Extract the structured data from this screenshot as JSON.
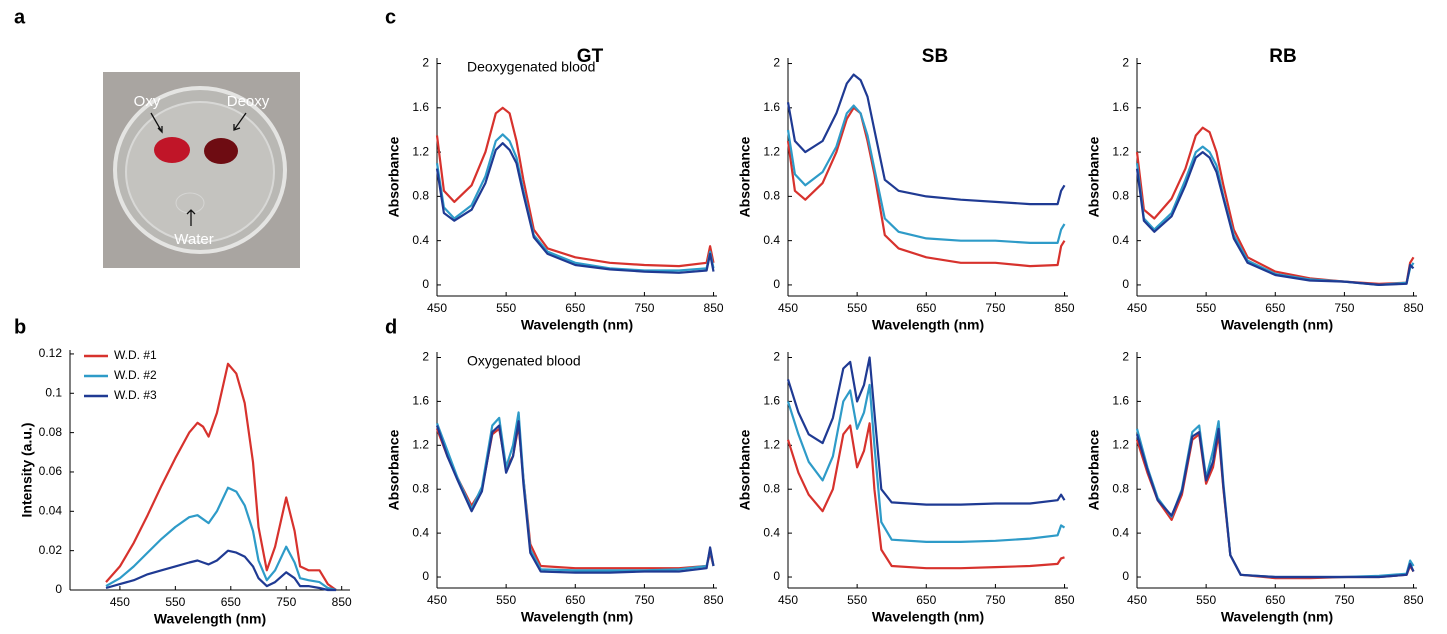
{
  "panel_labels": [
    "a",
    "b",
    "c",
    "d"
  ],
  "column_titles": [
    "GT",
    "SB",
    "RB"
  ],
  "photo": {
    "labels": [
      "Oxy",
      "Deoxy",
      "Water"
    ]
  },
  "chart_data": [
    {
      "type": "line",
      "xlabel": "Wavelength (nm)",
      "ylabel": "Intensity (a.u.)",
      "legend": "upper left",
      "x": [
        425,
        450,
        475,
        500,
        525,
        550,
        575,
        590,
        600,
        610,
        625,
        645,
        660,
        675,
        690,
        700,
        715,
        730,
        750,
        765,
        775,
        790,
        810,
        825,
        840
      ],
      "series": [
        {
          "name": "W.D. #1",
          "color": "#d7322d",
          "values": [
            0.004,
            0.012,
            0.024,
            0.038,
            0.053,
            0.067,
            0.08,
            0.085,
            0.083,
            0.078,
            0.09,
            0.115,
            0.11,
            0.095,
            0.065,
            0.032,
            0.01,
            0.022,
            0.047,
            0.03,
            0.012,
            0.01,
            0.01,
            0.003,
            0
          ]
        },
        {
          "name": "W.D. #2",
          "color": "#2e9bc8",
          "values": [
            0.002,
            0.006,
            0.012,
            0.019,
            0.026,
            0.032,
            0.037,
            0.038,
            0.036,
            0.034,
            0.04,
            0.052,
            0.05,
            0.043,
            0.03,
            0.015,
            0.005,
            0.01,
            0.022,
            0.014,
            0.006,
            0.005,
            0.004,
            0.001,
            0
          ]
        },
        {
          "name": "W.D. #3",
          "color": "#1f3a93",
          "values": [
            0.001,
            0.003,
            0.005,
            0.008,
            0.01,
            0.012,
            0.014,
            0.015,
            0.014,
            0.013,
            0.015,
            0.02,
            0.019,
            0.017,
            0.012,
            0.006,
            0.002,
            0.004,
            0.009,
            0.006,
            0.002,
            0.002,
            0.001,
            0,
            0
          ]
        }
      ],
      "xlim": [
        360,
        865
      ],
      "ylim": [
        0,
        0.122
      ],
      "xticks": [
        450,
        550,
        650,
        750,
        850
      ],
      "yticks": [
        0,
        0.02,
        0.04,
        0.06,
        0.08,
        0.1,
        0.12
      ]
    },
    {
      "type": "line",
      "xlabel": "Wavelength (nm)",
      "ylabel": "Absorbance",
      "annotation": "Deoxygenated blood",
      "x": [
        450,
        460,
        475,
        500,
        520,
        535,
        545,
        555,
        565,
        575,
        590,
        610,
        650,
        700,
        750,
        800,
        840,
        845,
        850
      ],
      "series": [
        {
          "color": "#d7322d",
          "values": [
            1.35,
            0.85,
            0.75,
            0.9,
            1.2,
            1.55,
            1.6,
            1.55,
            1.3,
            0.95,
            0.5,
            0.33,
            0.25,
            0.2,
            0.18,
            0.17,
            0.2,
            0.35,
            0.2
          ]
        },
        {
          "color": "#2e9bc8",
          "values": [
            1.1,
            0.7,
            0.6,
            0.72,
            0.98,
            1.3,
            1.36,
            1.3,
            1.15,
            0.85,
            0.45,
            0.3,
            0.2,
            0.15,
            0.13,
            0.13,
            0.15,
            0.3,
            0.15
          ]
        },
        {
          "color": "#1f3a93",
          "values": [
            1.05,
            0.65,
            0.58,
            0.68,
            0.92,
            1.22,
            1.28,
            1.22,
            1.1,
            0.82,
            0.43,
            0.28,
            0.18,
            0.14,
            0.12,
            0.11,
            0.13,
            0.28,
            0.12
          ]
        }
      ],
      "xlim": [
        450,
        855
      ],
      "ylim": [
        -0.1,
        2.05
      ],
      "xticks": [
        450,
        550,
        650,
        750,
        850
      ],
      "yticks": [
        0,
        0.4,
        0.8,
        1.2,
        1.6,
        2
      ]
    },
    {
      "type": "line",
      "xlabel": "Wavelength (nm)",
      "ylabel": "Absorbance",
      "x": [
        450,
        460,
        475,
        500,
        520,
        535,
        545,
        555,
        565,
        575,
        590,
        610,
        650,
        700,
        750,
        800,
        840,
        845,
        850
      ],
      "series": [
        {
          "color": "#d7322d",
          "values": [
            1.3,
            0.85,
            0.77,
            0.92,
            1.2,
            1.5,
            1.6,
            1.55,
            1.3,
            1.0,
            0.45,
            0.33,
            0.25,
            0.2,
            0.2,
            0.17,
            0.18,
            0.35,
            0.4
          ]
        },
        {
          "color": "#2e9bc8",
          "values": [
            1.4,
            1.0,
            0.9,
            1.02,
            1.25,
            1.55,
            1.62,
            1.55,
            1.35,
            1.05,
            0.6,
            0.48,
            0.42,
            0.4,
            0.4,
            0.38,
            0.38,
            0.5,
            0.55
          ]
        },
        {
          "color": "#1f3a93",
          "values": [
            1.65,
            1.3,
            1.2,
            1.3,
            1.55,
            1.82,
            1.9,
            1.85,
            1.7,
            1.4,
            0.95,
            0.85,
            0.8,
            0.77,
            0.75,
            0.73,
            0.73,
            0.85,
            0.9
          ]
        }
      ],
      "xlim": [
        450,
        855
      ],
      "ylim": [
        -0.1,
        2.05
      ],
      "xticks": [
        450,
        550,
        650,
        750,
        850
      ],
      "yticks": [
        0,
        0.4,
        0.8,
        1.2,
        1.6,
        2
      ]
    },
    {
      "type": "line",
      "xlabel": "Wavelength (nm)",
      "ylabel": "Absorbance",
      "x": [
        450,
        460,
        475,
        500,
        520,
        535,
        545,
        555,
        565,
        575,
        590,
        610,
        650,
        700,
        750,
        800,
        840,
        845,
        850
      ],
      "series": [
        {
          "color": "#d7322d",
          "values": [
            1.2,
            0.68,
            0.6,
            0.78,
            1.05,
            1.35,
            1.42,
            1.38,
            1.2,
            0.9,
            0.5,
            0.25,
            0.12,
            0.06,
            0.03,
            0.01,
            0.02,
            0.2,
            0.25
          ]
        },
        {
          "color": "#2e9bc8",
          "values": [
            1.1,
            0.6,
            0.5,
            0.65,
            0.95,
            1.2,
            1.25,
            1.2,
            1.08,
            0.8,
            0.45,
            0.22,
            0.1,
            0.05,
            0.03,
            0.0,
            0.02,
            0.15,
            0.2
          ]
        },
        {
          "color": "#1f3a93",
          "values": [
            1.05,
            0.58,
            0.48,
            0.62,
            0.9,
            1.15,
            1.2,
            1.15,
            1.02,
            0.78,
            0.42,
            0.2,
            0.09,
            0.04,
            0.03,
            0.0,
            0.01,
            0.18,
            0.15
          ]
        }
      ],
      "xlim": [
        450,
        855
      ],
      "ylim": [
        -0.1,
        2.05
      ],
      "xticks": [
        450,
        550,
        650,
        750,
        850
      ],
      "yticks": [
        0,
        0.4,
        0.8,
        1.2,
        1.6,
        2
      ]
    },
    {
      "type": "line",
      "xlabel": "Wavelength (nm)",
      "ylabel": "Absorbance",
      "annotation": "Oxygenated blood",
      "x": [
        450,
        465,
        480,
        500,
        515,
        530,
        540,
        550,
        560,
        568,
        575,
        585,
        600,
        650,
        700,
        750,
        800,
        840,
        845,
        850
      ],
      "series": [
        {
          "color": "#d7322d",
          "values": [
            1.35,
            1.1,
            0.9,
            0.65,
            0.8,
            1.3,
            1.35,
            1.0,
            1.1,
            1.38,
            0.9,
            0.3,
            0.1,
            0.08,
            0.08,
            0.08,
            0.08,
            0.1,
            0.22,
            0.1
          ]
        },
        {
          "color": "#2e9bc8",
          "values": [
            1.4,
            1.15,
            0.9,
            0.62,
            0.82,
            1.38,
            1.45,
            1.0,
            1.2,
            1.5,
            0.9,
            0.25,
            0.07,
            0.06,
            0.06,
            0.06,
            0.07,
            0.1,
            0.25,
            0.1
          ]
        },
        {
          "color": "#1f3a93",
          "values": [
            1.38,
            1.1,
            0.88,
            0.6,
            0.78,
            1.32,
            1.38,
            0.95,
            1.1,
            1.42,
            0.85,
            0.22,
            0.05,
            0.04,
            0.04,
            0.05,
            0.05,
            0.08,
            0.27,
            0.1
          ]
        }
      ],
      "xlim": [
        450,
        855
      ],
      "ylim": [
        -0.1,
        2.05
      ],
      "xticks": [
        450,
        550,
        650,
        750,
        850
      ],
      "yticks": [
        0,
        0.4,
        0.8,
        1.2,
        1.6,
        2
      ]
    },
    {
      "type": "line",
      "xlabel": "Wavelength (nm)",
      "ylabel": "Absorbance",
      "x": [
        450,
        465,
        480,
        500,
        515,
        530,
        540,
        550,
        560,
        568,
        575,
        585,
        600,
        650,
        700,
        750,
        800,
        840,
        845,
        850
      ],
      "series": [
        {
          "color": "#d7322d",
          "values": [
            1.25,
            0.95,
            0.75,
            0.6,
            0.8,
            1.3,
            1.38,
            1.0,
            1.15,
            1.4,
            0.8,
            0.25,
            0.1,
            0.08,
            0.08,
            0.09,
            0.1,
            0.12,
            0.17,
            0.18
          ]
        },
        {
          "color": "#2e9bc8",
          "values": [
            1.6,
            1.3,
            1.05,
            0.88,
            1.1,
            1.6,
            1.7,
            1.35,
            1.5,
            1.75,
            1.2,
            0.5,
            0.34,
            0.32,
            0.32,
            0.33,
            0.35,
            0.38,
            0.47,
            0.45
          ]
        },
        {
          "color": "#1f3a93",
          "values": [
            1.8,
            1.5,
            1.3,
            1.22,
            1.45,
            1.9,
            1.96,
            1.6,
            1.75,
            2.0,
            1.5,
            0.8,
            0.68,
            0.66,
            0.66,
            0.67,
            0.67,
            0.7,
            0.75,
            0.7
          ]
        }
      ],
      "xlim": [
        450,
        855
      ],
      "ylim": [
        -0.1,
        2.05
      ],
      "xticks": [
        450,
        550,
        650,
        750,
        850
      ],
      "yticks": [
        0,
        0.4,
        0.8,
        1.2,
        1.6,
        2
      ]
    },
    {
      "type": "line",
      "xlabel": "Wavelength (nm)",
      "ylabel": "Absorbance",
      "x": [
        450,
        465,
        480,
        500,
        515,
        530,
        540,
        550,
        560,
        568,
        575,
        585,
        600,
        650,
        700,
        750,
        800,
        840,
        845,
        850
      ],
      "series": [
        {
          "color": "#d7322d",
          "values": [
            1.25,
            0.95,
            0.7,
            0.52,
            0.75,
            1.25,
            1.3,
            0.85,
            1.0,
            1.3,
            0.8,
            0.2,
            0.02,
            -0.01,
            -0.01,
            0,
            0,
            0.02,
            0.1,
            0.05
          ]
        },
        {
          "color": "#2e9bc8",
          "values": [
            1.35,
            1.0,
            0.72,
            0.55,
            0.8,
            1.32,
            1.38,
            0.9,
            1.15,
            1.42,
            0.85,
            0.2,
            0.02,
            0,
            0,
            0,
            0.01,
            0.03,
            0.15,
            0.1
          ]
        },
        {
          "color": "#1f3a93",
          "values": [
            1.3,
            0.98,
            0.7,
            0.56,
            0.78,
            1.28,
            1.32,
            0.88,
            1.05,
            1.35,
            0.82,
            0.2,
            0.02,
            0,
            0,
            0,
            0,
            0.02,
            0.12,
            0.05
          ]
        }
      ],
      "xlim": [
        450,
        855
      ],
      "ylim": [
        -0.1,
        2.05
      ],
      "xticks": [
        450,
        550,
        650,
        750,
        850
      ],
      "yticks": [
        0,
        0.4,
        0.8,
        1.2,
        1.6,
        2
      ]
    }
  ]
}
